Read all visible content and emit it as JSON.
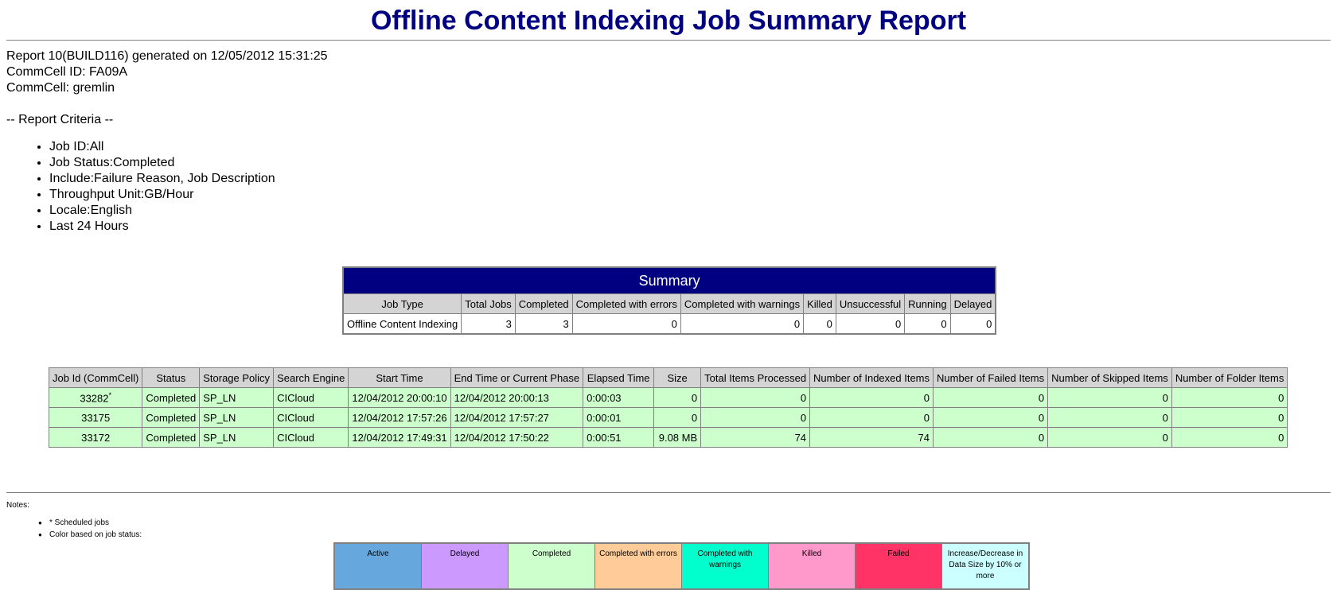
{
  "header": {
    "title": "Offline Content Indexing Job Summary Report",
    "report_line": "Report 10(BUILD116) generated on 12/05/2012 15:31:25",
    "commcell_id": "CommCell ID: FA09A",
    "commcell": "CommCell: gremlin"
  },
  "criteria": {
    "heading": "-- Report Criteria --",
    "items": [
      "Job ID:All",
      "Job Status:Completed",
      "Include:Failure Reason, Job Description",
      "Throughput Unit:GB/Hour",
      "Locale:English",
      "Last 24 Hours"
    ]
  },
  "summary": {
    "title": "Summary",
    "headers": [
      "Job Type",
      "Total Jobs",
      "Completed",
      "Completed with errors",
      "Completed with warnings",
      "Killed",
      "Unsuccessful",
      "Running",
      "Delayed"
    ],
    "row": [
      "Offline Content Indexing",
      "3",
      "3",
      "0",
      "0",
      "0",
      "0",
      "0",
      "0"
    ]
  },
  "jobs": {
    "headers": [
      "Job Id (CommCell)",
      "Status",
      "Storage Policy",
      "Search Engine",
      "Start Time",
      "End Time or Current Phase",
      "Elapsed Time",
      "Size",
      "Total Items Processed",
      "Number of Indexed Items",
      "Number of Failed Items",
      "Number of Skipped Items",
      "Number of Folder Items"
    ],
    "rows": [
      {
        "id": "33282",
        "scheduled_mark": "*",
        "status": "Completed",
        "policy": "SP_LN",
        "engine": "CICloud",
        "start": "12/04/2012 20:00:10",
        "end": "12/04/2012 20:00:13",
        "elapsed": "0:00:03",
        "size": "0",
        "total": "0",
        "indexed": "0",
        "failed": "0",
        "skipped": "0",
        "folder": "0"
      },
      {
        "id": "33175",
        "scheduled_mark": "",
        "status": "Completed",
        "policy": "SP_LN",
        "engine": "CICloud",
        "start": "12/04/2012 17:57:26",
        "end": "12/04/2012 17:57:27",
        "elapsed": "0:00:01",
        "size": "0",
        "total": "0",
        "indexed": "0",
        "failed": "0",
        "skipped": "0",
        "folder": "0"
      },
      {
        "id": "33172",
        "scheduled_mark": "",
        "status": "Completed",
        "policy": "SP_LN",
        "engine": "CICloud",
        "start": "12/04/2012 17:49:31",
        "end": "12/04/2012 17:50:22",
        "elapsed": "0:00:51",
        "size": "9.08 MB",
        "total": "74",
        "indexed": "74",
        "failed": "0",
        "skipped": "0",
        "folder": "0"
      }
    ]
  },
  "notes": {
    "label": "Notes:",
    "items": [
      "* Scheduled jobs",
      "Color based on job status:"
    ]
  },
  "legend": [
    {
      "label": "Active",
      "color": "#66a8dd"
    },
    {
      "label": "Delayed",
      "color": "#cc99ff"
    },
    {
      "label": "Completed",
      "color": "#ccffcc"
    },
    {
      "label": "Completed with errors",
      "color": "#ffcc99"
    },
    {
      "label": "Completed with warnings",
      "color": "#00ffcc"
    },
    {
      "label": "Killed",
      "color": "#ff99cc"
    },
    {
      "label": "Failed",
      "color": "#ff3366"
    },
    {
      "label": "Increase/Decrease in Data Size by 10% or more",
      "color": "#ccffff"
    }
  ]
}
